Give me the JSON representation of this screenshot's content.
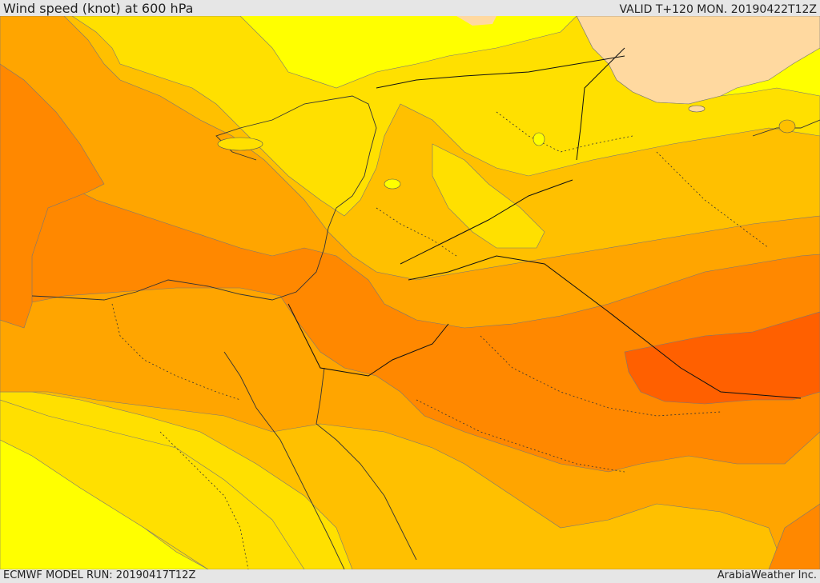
{
  "header": {
    "title": "Wind speed (knot) at 600 hPa",
    "valid": "VALID T+120 MON. 20190422T12Z"
  },
  "footer": {
    "model_run": "ECMWF MODEL RUN: 20190417T12Z",
    "credit": "ArabiaWeather Inc."
  },
  "map": {
    "variable": "wind speed",
    "units": "knot",
    "level": "600 hPa",
    "colors": {
      "light_tan": "#ffd9a0",
      "yellow": "#ffff00",
      "gold": "#ffe000",
      "amber": "#ffc000",
      "light_orange": "#ffa500",
      "orange": "#ff8800",
      "dark_orange": "#ff6000"
    }
  }
}
